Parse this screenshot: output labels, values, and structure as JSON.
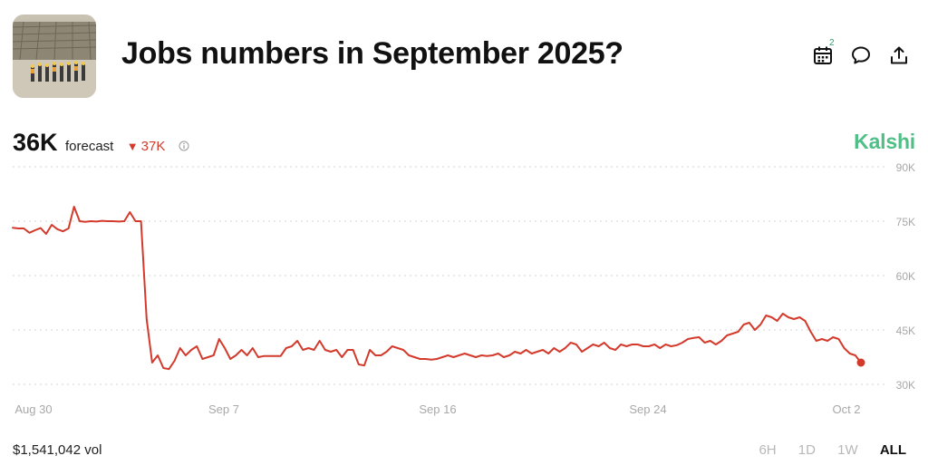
{
  "market": {
    "title": "Jobs numbers in September 2025?",
    "calendar_badge": "2"
  },
  "forecast": {
    "value": "36K",
    "label": "forecast",
    "change": "37K",
    "change_direction": "down"
  },
  "brand": "Kalshi",
  "volume": "$1,541,042 vol",
  "ranges": [
    {
      "label": "6H",
      "active": false
    },
    {
      "label": "1D",
      "active": false
    },
    {
      "label": "1W",
      "active": false
    },
    {
      "label": "ALL",
      "active": true
    }
  ],
  "icons": {
    "calendar": "calendar-icon",
    "comment": "comment-icon",
    "share": "share-icon",
    "info": "info-icon"
  },
  "colors": {
    "line": "#d33a2c",
    "brand": "#4fbf87",
    "grid": "#d6d6d6",
    "axis_text": "#a8a8a8"
  },
  "chart_data": {
    "type": "line",
    "title": "",
    "xlabel": "",
    "ylabel": "",
    "ylim": [
      30,
      90
    ],
    "grid": true,
    "x_ticks": [
      "Aug 30",
      "Sep 7",
      "Sep 16",
      "Sep 24",
      "Oct 2"
    ],
    "y_ticks": [
      "30K",
      "45K",
      "60K",
      "75K",
      "90K"
    ],
    "series": [
      {
        "values": [
          73.2,
          73.0,
          73.0,
          71.8,
          72.5,
          73.1,
          71.5,
          74.0,
          72.8,
          72.2,
          73.0,
          79.0,
          75.0,
          74.8,
          75.0,
          74.9,
          75.1,
          75.0,
          75.0,
          74.9,
          75.0,
          77.5,
          75.0,
          75.0,
          48.0,
          36.0,
          38.0,
          34.5,
          34.2,
          36.5,
          40.0,
          38.0,
          39.5,
          40.5,
          37.0,
          37.5,
          38.0,
          42.5,
          40.0,
          37.0,
          38.0,
          39.5,
          38.0,
          40.0,
          37.5,
          37.8,
          37.8,
          37.8,
          37.8,
          40.0,
          40.5,
          42.0,
          39.5,
          40.0,
          39.5,
          42.0,
          39.5,
          39.0,
          39.5,
          37.5,
          39.5,
          39.5,
          35.5,
          35.2,
          39.5,
          38.0,
          38.0,
          39.0,
          40.5,
          40.0,
          39.5,
          38.0,
          37.5,
          37.0,
          37.0,
          36.8,
          37.0,
          37.5,
          38.0,
          37.5,
          38.0,
          38.5,
          38.0,
          37.5,
          38.0,
          37.8,
          38.0,
          38.5,
          37.5,
          38.0,
          39.0,
          38.5,
          39.5,
          38.5,
          39.0,
          39.5,
          38.5,
          40.0,
          39.0,
          40.0,
          41.5,
          41.0,
          39.0,
          40.0,
          41.0,
          40.5,
          41.5,
          40.0,
          39.5,
          41.0,
          40.5,
          41.0,
          41.0,
          40.5,
          40.5,
          41.0,
          40.0,
          41.0,
          40.5,
          40.8,
          41.5,
          42.5,
          42.8,
          43.0,
          41.5,
          42.0,
          41.0,
          42.0,
          43.5,
          44.0,
          44.5,
          46.5,
          47.0,
          45.0,
          46.5,
          49.0,
          48.5,
          47.5,
          49.5,
          48.5,
          48.0,
          48.5,
          47.5,
          44.5,
          42.0,
          42.5,
          42.0,
          43.0,
          42.5,
          40.0,
          38.5,
          38.0,
          36.0
        ]
      }
    ]
  }
}
